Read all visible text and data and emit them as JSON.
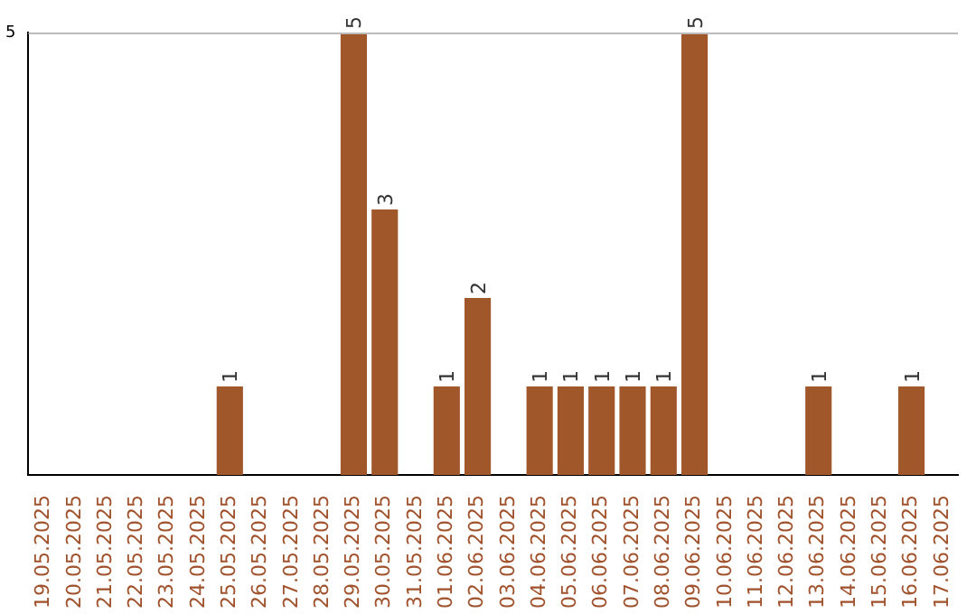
{
  "chart_data": {
    "type": "bar",
    "categories": [
      "19.05.2025",
      "20.05.2025",
      "21.05.2025",
      "22.05.2025",
      "23.05.2025",
      "24.05.2025",
      "25.05.2025",
      "26.05.2025",
      "27.05.2025",
      "28.05.2025",
      "29.05.2025",
      "30.05.2025",
      "31.05.2025",
      "01.06.2025",
      "02.06.2025",
      "03.06.2025",
      "04.06.2025",
      "05.06.2025",
      "06.06.2025",
      "07.06.2025",
      "08.06.2025",
      "09.06.2025",
      "10.06.2025",
      "11.06.2025",
      "12.06.2025",
      "13.06.2025",
      "14.06.2025",
      "15.06.2025",
      "16.06.2025",
      "17.06.2025"
    ],
    "values": [
      0,
      0,
      0,
      0,
      0,
      0,
      1,
      0,
      0,
      0,
      5,
      3,
      0,
      1,
      2,
      0,
      1,
      1,
      1,
      1,
      1,
      5,
      0,
      0,
      0,
      1,
      0,
      0,
      1,
      0
    ],
    "value_labels": [
      null,
      null,
      null,
      null,
      null,
      null,
      "1",
      null,
      null,
      null,
      "5",
      "3",
      null,
      "1",
      "2",
      null,
      "1",
      "1",
      "1",
      "1",
      "1",
      "5",
      null,
      null,
      null,
      "1",
      null,
      null,
      "1",
      null
    ],
    "color": "#a0572a",
    "ylim": [
      0,
      5
    ],
    "yticks": [
      5
    ],
    "legend": false
  }
}
